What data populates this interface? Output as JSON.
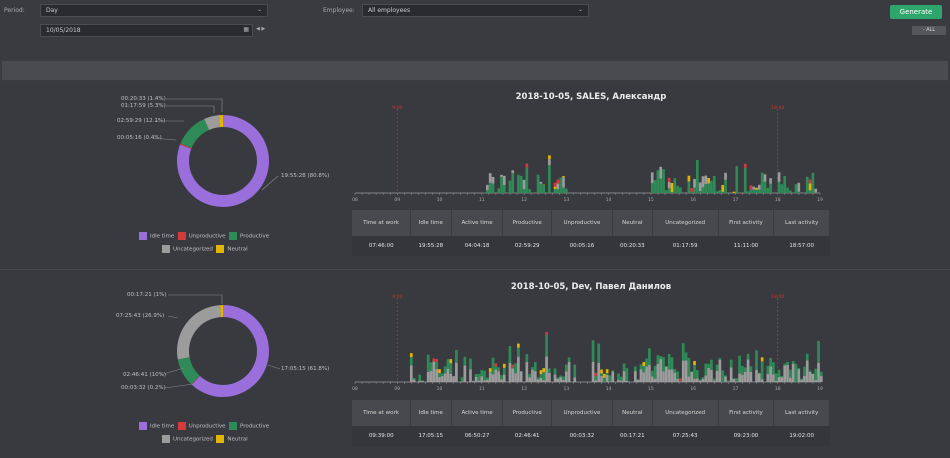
{
  "filters": {
    "period_label": "Period:",
    "period_value": "Day",
    "date_value": "10/05/2018",
    "employee_label": "Employee:",
    "employee_value": "All employees",
    "generate_label": "Generate",
    "all_label": "- ALL"
  },
  "colors": {
    "idle": "#9a6fdb",
    "unproductive": "#d43a3a",
    "productive": "#2e8b57",
    "uncategorized": "#9c9c9c",
    "neutral": "#e3b500",
    "accent": "#2ea56a"
  },
  "legend": {
    "idle": "Idle time",
    "unproductive": "Unproductive",
    "productive": "Productive",
    "uncategorized": "Uncategorized",
    "neutral": "Neutral"
  },
  "sections": [
    {
      "title": "2018-10-05, SALES, Александр",
      "callouts": {
        "c1": "00:20:33 (1.4%)",
        "c2": "01:17:59 (5.3%)",
        "c3": "02:59:29 (12.1%)",
        "c4": "00:05:16 (0.4%)",
        "c5": "19:55:28 (80.8%)"
      },
      "marker_start": "9:00",
      "marker_end": "18:00",
      "table_headers": [
        "Time at work",
        "Idle time",
        "Active time",
        "Productive",
        "Unproductive",
        "Neutral",
        "Uncategorized",
        "First activity",
        "Last activity"
      ],
      "table_values": [
        "07:46:00",
        "19:55:28",
        "04:04:18",
        "02:59:29",
        "00:05:16",
        "00:20:33",
        "01:17:59",
        "11:11:00",
        "18:57:00"
      ]
    },
    {
      "title": "2018-10-05, Dev, Павел Данилов",
      "callouts": {
        "c1": "00:17:21 (1%)",
        "c2": "07:25:43 (26.9%)",
        "c3": "02:46:41 (10%)",
        "c4": "00:03:32 (0.2%)",
        "c5": "17:05:15 (61.8%)"
      },
      "marker_start": "9:00",
      "marker_end": "18:00",
      "table_headers": [
        "Time at work",
        "Idle time",
        "Active time",
        "Productive",
        "Unproductive",
        "Neutral",
        "Uncategorized",
        "First activity",
        "Last activity"
      ],
      "table_values": [
        "09:39:00",
        "17:05:15",
        "06:50:27",
        "02:46:41",
        "00:03:32",
        "00:17:21",
        "07:25:43",
        "09:23:00",
        "19:02:00"
      ]
    }
  ],
  "chart_data": [
    {
      "type": "pie",
      "labels": [
        "Idle time",
        "Unproductive",
        "Productive",
        "Uncategorized",
        "Neutral"
      ],
      "values": [
        80.8,
        0.4,
        12.1,
        5.3,
        1.4
      ],
      "value_labels": [
        "19:55:28 (80.8%)",
        "00:05:16 (0.4%)",
        "02:59:29 (12.1%)",
        "01:17:59 (5.3%)",
        "00:20:33 (1.4%)"
      ]
    },
    {
      "type": "bar",
      "stacked": true,
      "x_ticks": [
        "08",
        "09",
        "10",
        "11",
        "12",
        "13",
        "14",
        "15",
        "16",
        "17",
        "18",
        "19"
      ],
      "active_ranges": [
        [
          11.1,
          13.0
        ],
        [
          15.0,
          17.0
        ],
        [
          17.2,
          18.9
        ]
      ],
      "markers": [
        "9:00",
        "18:00"
      ]
    },
    {
      "type": "pie",
      "labels": [
        "Idle time",
        "Unproductive",
        "Productive",
        "Uncategorized",
        "Neutral"
      ],
      "values": [
        61.8,
        0.2,
        10.0,
        26.9,
        1.0
      ],
      "value_labels": [
        "17:05:15 (61.8%)",
        "00:03:32 (0.2%)",
        "02:46:41 (10%)",
        "07:25:43 (26.9%)",
        "00:17:21 (1%)"
      ]
    },
    {
      "type": "bar",
      "stacked": true,
      "x_ticks": [
        "08",
        "09",
        "10",
        "11",
        "12",
        "13",
        "14",
        "15",
        "16",
        "17",
        "18",
        "19"
      ],
      "active_ranges": [
        [
          9.3,
          13.2
        ],
        [
          13.6,
          19.0
        ]
      ],
      "markers": [
        "9:00",
        "18:00"
      ]
    }
  ]
}
